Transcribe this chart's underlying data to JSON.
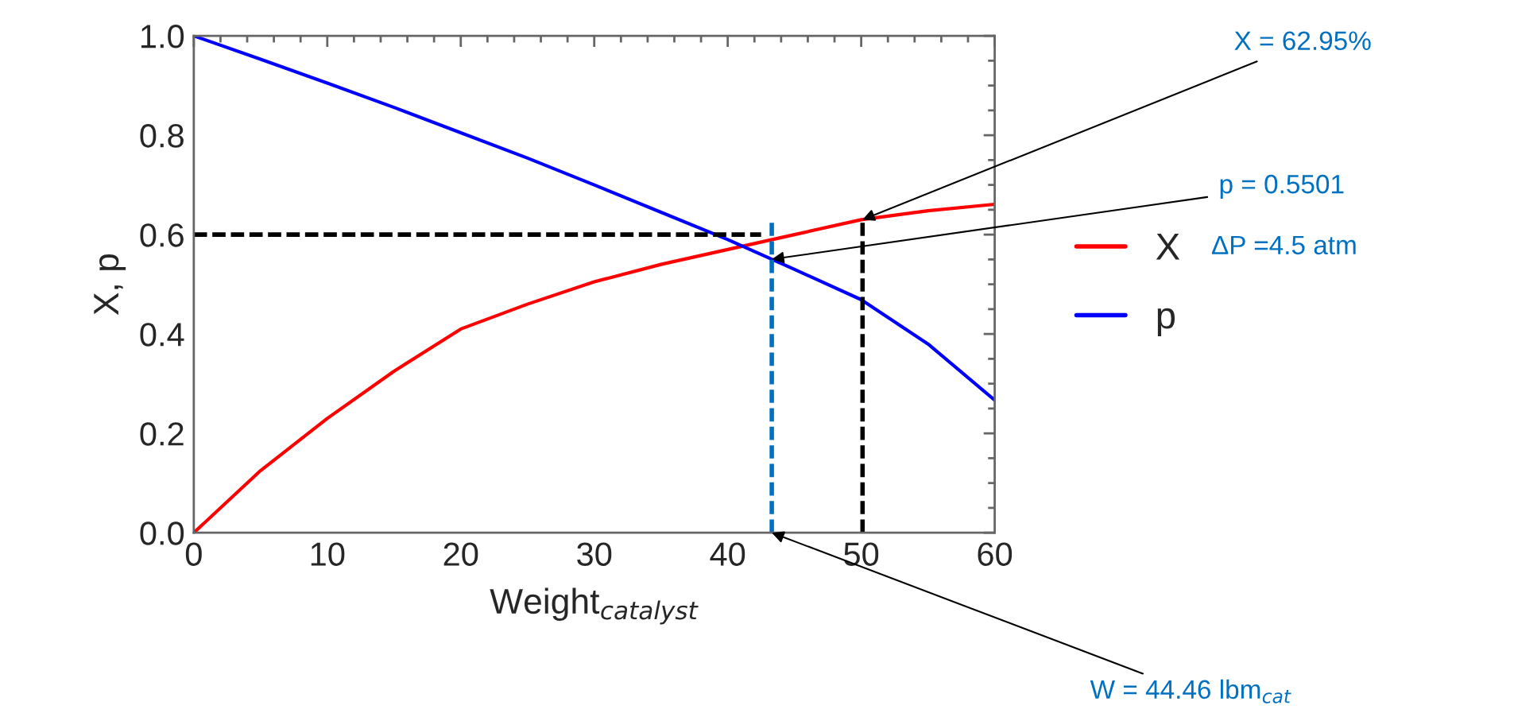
{
  "chart_data": {
    "type": "line",
    "xlabel": "Weight$_{catalyst}$",
    "ylabel": "X, p",
    "xlim": [
      0,
      60
    ],
    "xticks": [
      0,
      10,
      20,
      30,
      40,
      50,
      60
    ],
    "ylim": [
      0,
      1
    ],
    "yticks": [
      {
        "value": 0,
        "label": "0.0"
      },
      {
        "value": 0.2,
        "label": "0.2"
      },
      {
        "value": 0.4,
        "label": "0.4"
      },
      {
        "value": 0.6,
        "label": "0.6"
      },
      {
        "value": 0.8,
        "label": "0.8"
      },
      {
        "value": 1,
        "label": "1.0"
      }
    ],
    "grid": false,
    "legend": "right",
    "series": [
      {
        "name": "X",
        "color": "#ff0000",
        "x": [
          0,
          5,
          10,
          15,
          20,
          25,
          30,
          35,
          40,
          45,
          50,
          55,
          60
        ],
        "values": [
          0,
          0.125,
          0.23,
          0.325,
          0.41,
          0.46,
          0.505,
          0.54,
          0.57,
          0.6,
          0.63,
          0.648,
          0.661
        ]
      },
      {
        "name": "p",
        "color": "#0000ff",
        "x": [
          0,
          5,
          10,
          15,
          20,
          25,
          30,
          35,
          40,
          45,
          50,
          55,
          60
        ],
        "values": [
          1.0,
          0.953,
          0.905,
          0.856,
          0.805,
          0.754,
          0.7,
          0.645,
          0.59,
          0.53,
          0.469,
          0.38,
          0.267
        ]
      },
      {
        "color": "#000000",
        "line_style": "dashed",
        "x": [
          0,
          42.5
        ],
        "values": [
          0.6,
          0.6
        ]
      },
      {
        "color": "#0070c0",
        "line_style": "dashed",
        "x": [
          43.3,
          43.3
        ],
        "values": [
          0,
          0.63
        ]
      },
      {
        "color": "#000000",
        "line_style": "dashed",
        "x": [
          50.1,
          50.1
        ],
        "values": [
          0,
          0.63
        ]
      }
    ],
    "annotations": [
      "X = 62.95%",
      "p = 0.5501",
      "ΔP =4.5 atm",
      "W = 44.46 lbm$_{cat}$"
    ]
  }
}
